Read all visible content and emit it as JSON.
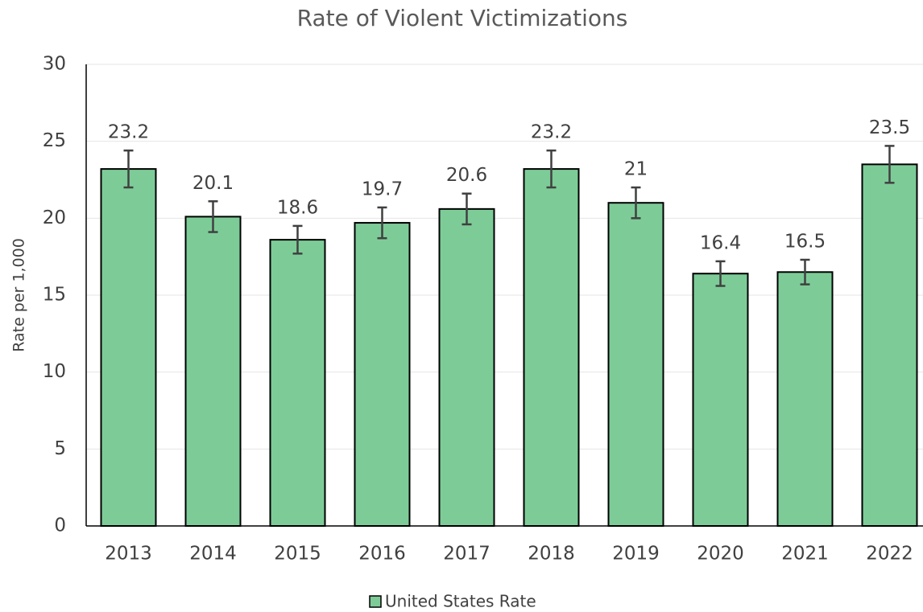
{
  "chart_data": {
    "type": "bar",
    "title": "Rate of Violent Victimizations",
    "ylabel": "Rate per 1,000",
    "categories": [
      "2013",
      "2014",
      "2015",
      "2016",
      "2017",
      "2018",
      "2019",
      "2020",
      "2021",
      "2022"
    ],
    "series": [
      {
        "name": "United States Rate",
        "color": "#7dcc98",
        "values": [
          23.2,
          20.1,
          18.6,
          19.7,
          20.6,
          23.2,
          21,
          16.4,
          16.5,
          23.5
        ],
        "errors": [
          1.2,
          1.0,
          0.9,
          1.0,
          1.0,
          1.2,
          1.0,
          0.8,
          0.8,
          1.2
        ]
      }
    ],
    "ylim": [
      0,
      30
    ],
    "yticks": [
      0,
      5,
      10,
      15,
      20,
      25,
      30
    ],
    "grid": true,
    "legend": "bottom"
  }
}
